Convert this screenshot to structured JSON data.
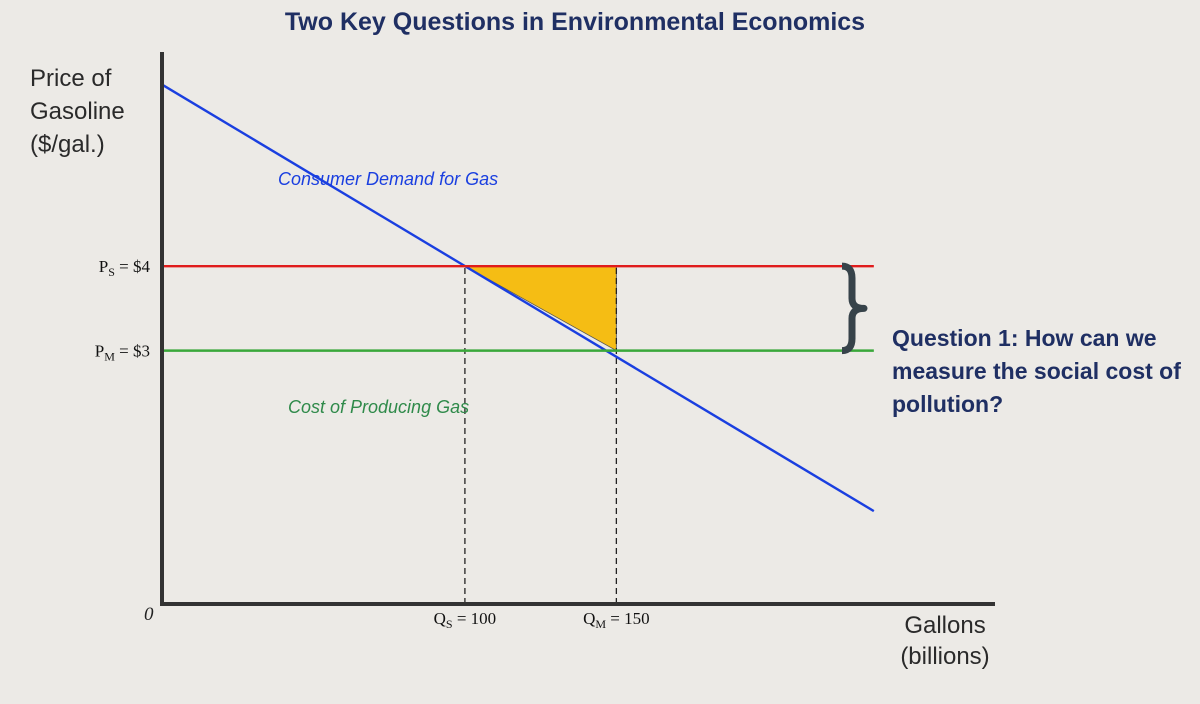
{
  "title": "Two Key Questions in Environmental Economics",
  "question": "Question 1: How can we measure the social cost of pollution?",
  "colors": {
    "demand": "#1a3fe0",
    "social_price": "#e01c1c",
    "market_price": "#3aa83a",
    "deadweight_fill": "#f5bd14",
    "axis": "#333333",
    "title": "#1f2f63",
    "brace": "#37434a"
  },
  "chart_data": {
    "type": "line",
    "title": "Two Key Questions in Environmental Economics",
    "ylabel": "Price of\nGasoline\n($/gal.)",
    "xlabel": "Gallons\n(billions)",
    "origin_label": "0",
    "xlim": [
      0,
      275
    ],
    "ylim": [
      0,
      6.5
    ],
    "series": [
      {
        "name": "Consumer Demand for Gas",
        "kind": "demand",
        "points": [
          [
            0,
            6.15
          ],
          [
            235,
            1.1
          ]
        ]
      },
      {
        "name": "Cost of Producing Gas",
        "kind": "market_cost",
        "points": [
          [
            0,
            3.0
          ],
          [
            235,
            3.0
          ]
        ]
      },
      {
        "name": "",
        "kind": "social_cost",
        "points": [
          [
            0,
            4.0
          ],
          [
            235,
            4.0
          ]
        ]
      }
    ],
    "reference_lines": [
      {
        "axis": "x",
        "value": 100,
        "from": 0,
        "to": 4.0
      },
      {
        "axis": "x",
        "value": 150,
        "from": 0,
        "to": 4.0
      }
    ],
    "shaded_region": {
      "points": [
        [
          100,
          4.0
        ],
        [
          150,
          4.0
        ],
        [
          150,
          3.0
        ]
      ]
    },
    "y_ticks": [
      {
        "value": 4,
        "label": "PS = $4",
        "main": "P",
        "sub": "S",
        "rest": " = $4"
      },
      {
        "value": 3,
        "label": "PM = $3",
        "main": "P",
        "sub": "M",
        "rest": " = $3"
      }
    ],
    "x_ticks": [
      {
        "value": 100,
        "label": "QS = 100",
        "main": "Q",
        "sub": "S",
        "rest": " = 100"
      },
      {
        "value": 150,
        "label": "QM = 150",
        "main": "Q",
        "sub": "M",
        "rest": " = 150"
      }
    ],
    "bracket": {
      "from": 3.0,
      "to": 4.0
    },
    "grid": false,
    "legend": "none"
  }
}
